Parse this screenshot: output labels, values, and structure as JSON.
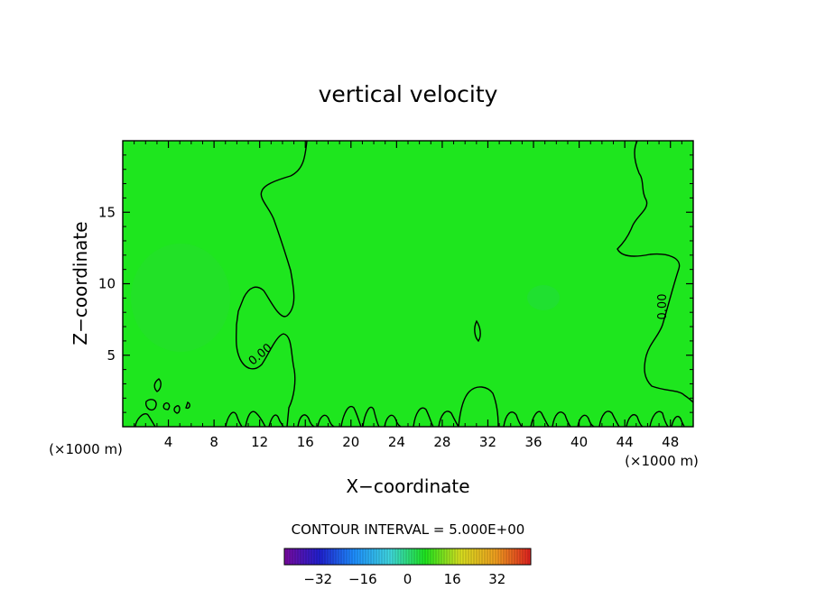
{
  "chart_data": {
    "type": "contour",
    "title": "vertical velocity",
    "xlabel": "X−coordinate",
    "ylabel": "Z−coordinate",
    "x_unit_left": "(×1000 m)",
    "x_unit_right": "(×1000 m)",
    "xlim": [
      0,
      50
    ],
    "ylim": [
      0,
      20
    ],
    "x_ticks": [
      4,
      8,
      12,
      16,
      20,
      24,
      28,
      32,
      36,
      40,
      44,
      48
    ],
    "y_ticks": [
      5,
      10,
      15
    ],
    "field_color": "#1ee61e",
    "contour_labels": [
      {
        "text": "0.00",
        "x": 12.2,
        "z": 5.0
      },
      {
        "text": "0.00",
        "x": 47.3,
        "z": 8.5
      }
    ],
    "contour_interval_text": "CONTOUR INTERVAL = 5.000E+00",
    "colorbar": {
      "min": -44,
      "max": 44,
      "ticks": [
        -32,
        -16,
        0,
        16,
        32
      ],
      "colors": [
        "#7a0aa0",
        "#2020d0",
        "#1e90ff",
        "#40d8e0",
        "#1ee61e",
        "#d8e020",
        "#f0a020",
        "#e02020"
      ]
    }
  }
}
